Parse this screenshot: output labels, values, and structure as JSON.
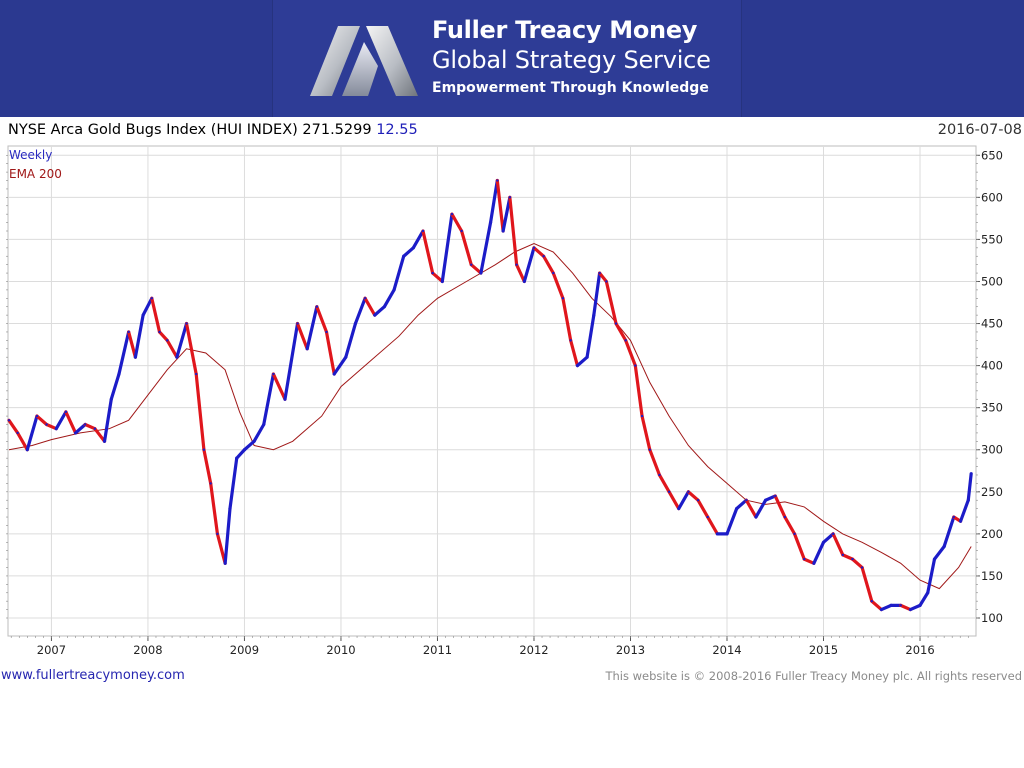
{
  "header": {
    "brand_name": "Fuller Treacy Money",
    "brand_service": "Global Strategy Service",
    "brand_tagline": "Empowerment Through Knowledge"
  },
  "chart": {
    "title": "NYSE Arca Gold Bugs Index (HUI INDEX) 271.5299",
    "change": "12.55",
    "date": "2016-07-08"
  },
  "footer": {
    "url": "www.fullertreacymoney.com",
    "copyright": "This website is © 2008-2016 Fuller Treacy Money plc. All rights reserved"
  },
  "colors": {
    "banner": "#2b3990",
    "up": "#1c1cc8",
    "down": "#e0161c",
    "ema": "#a01818"
  },
  "chart_data": {
    "type": "line",
    "title": "NYSE Arca Gold Bugs Index (HUI INDEX) 271.5299 12.55",
    "xlabel": "",
    "ylabel": "",
    "x_ticks": [
      "2007",
      "2008",
      "2009",
      "2010",
      "2011",
      "2012",
      "2013",
      "2014",
      "2015",
      "2016"
    ],
    "y_ticks": [
      100,
      150,
      200,
      250,
      300,
      350,
      400,
      450,
      500,
      550,
      600,
      650
    ],
    "ylim": [
      90,
      655
    ],
    "xlim": [
      2006.55,
      2016.58
    ],
    "grid": true,
    "legend": [
      "Weekly",
      "EMA 200"
    ],
    "series": [
      {
        "name": "Weekly",
        "x": [
          2006.56,
          2006.65,
          2006.75,
          2006.85,
          2006.95,
          2007.05,
          2007.15,
          2007.25,
          2007.35,
          2007.45,
          2007.55,
          2007.62,
          2007.7,
          2007.8,
          2007.87,
          2007.95,
          2008.04,
          2008.12,
          2008.2,
          2008.3,
          2008.4,
          2008.5,
          2008.58,
          2008.65,
          2008.72,
          2008.8,
          2008.85,
          2008.92,
          2009.0,
          2009.1,
          2009.2,
          2009.3,
          2009.42,
          2009.55,
          2009.65,
          2009.75,
          2009.85,
          2009.93,
          2010.05,
          2010.15,
          2010.25,
          2010.35,
          2010.45,
          2010.55,
          2010.65,
          2010.75,
          2010.85,
          2010.95,
          2011.05,
          2011.15,
          2011.25,
          2011.35,
          2011.45,
          2011.55,
          2011.62,
          2011.68,
          2011.75,
          2011.82,
          2011.9,
          2012.0,
          2012.1,
          2012.2,
          2012.3,
          2012.38,
          2012.45,
          2012.55,
          2012.62,
          2012.68,
          2012.75,
          2012.85,
          2012.95,
          2013.05,
          2013.12,
          2013.2,
          2013.3,
          2013.4,
          2013.5,
          2013.6,
          2013.7,
          2013.8,
          2013.9,
          2014.0,
          2014.1,
          2014.2,
          2014.3,
          2014.4,
          2014.5,
          2014.6,
          2014.7,
          2014.8,
          2014.9,
          2015.0,
          2015.1,
          2015.2,
          2015.3,
          2015.4,
          2015.5,
          2015.6,
          2015.7,
          2015.8,
          2015.9,
          2016.0,
          2016.08,
          2016.15,
          2016.25,
          2016.35,
          2016.42,
          2016.5,
          2016.53
        ],
        "values": [
          335,
          320,
          300,
          340,
          330,
          325,
          345,
          320,
          330,
          325,
          310,
          360,
          390,
          440,
          410,
          460,
          480,
          440,
          430,
          410,
          450,
          390,
          300,
          260,
          200,
          165,
          230,
          290,
          300,
          310,
          330,
          390,
          360,
          450,
          420,
          470,
          440,
          390,
          410,
          450,
          480,
          460,
          470,
          490,
          530,
          540,
          560,
          510,
          500,
          580,
          560,
          520,
          510,
          570,
          620,
          560,
          600,
          520,
          500,
          540,
          530,
          510,
          480,
          430,
          400,
          410,
          460,
          510,
          500,
          450,
          430,
          400,
          340,
          300,
          270,
          250,
          230,
          250,
          240,
          220,
          200,
          200,
          230,
          240,
          220,
          240,
          245,
          220,
          200,
          170,
          165,
          190,
          200,
          175,
          170,
          160,
          120,
          110,
          115,
          115,
          110,
          115,
          130,
          170,
          185,
          220,
          215,
          240,
          271.53
        ]
      },
      {
        "name": "EMA 200",
        "x": [
          2006.56,
          2006.8,
          2007.0,
          2007.3,
          2007.6,
          2007.8,
          2008.0,
          2008.2,
          2008.4,
          2008.6,
          2008.8,
          2008.95,
          2009.1,
          2009.3,
          2009.5,
          2009.8,
          2010.0,
          2010.3,
          2010.6,
          2010.8,
          2011.0,
          2011.3,
          2011.6,
          2011.8,
          2012.0,
          2012.2,
          2012.4,
          2012.6,
          2012.8,
          2013.0,
          2013.2,
          2013.4,
          2013.6,
          2013.8,
          2014.0,
          2014.2,
          2014.4,
          2014.6,
          2014.8,
          2015.0,
          2015.2,
          2015.4,
          2015.6,
          2015.8,
          2016.0,
          2016.2,
          2016.4,
          2016.53
        ],
        "values": [
          300,
          305,
          312,
          320,
          325,
          335,
          365,
          395,
          420,
          415,
          395,
          345,
          305,
          300,
          310,
          340,
          375,
          405,
          435,
          460,
          480,
          500,
          520,
          535,
          545,
          535,
          510,
          480,
          458,
          430,
          380,
          340,
          305,
          280,
          260,
          240,
          235,
          238,
          232,
          215,
          200,
          190,
          178,
          165,
          145,
          135,
          160,
          185
        ]
      }
    ]
  }
}
